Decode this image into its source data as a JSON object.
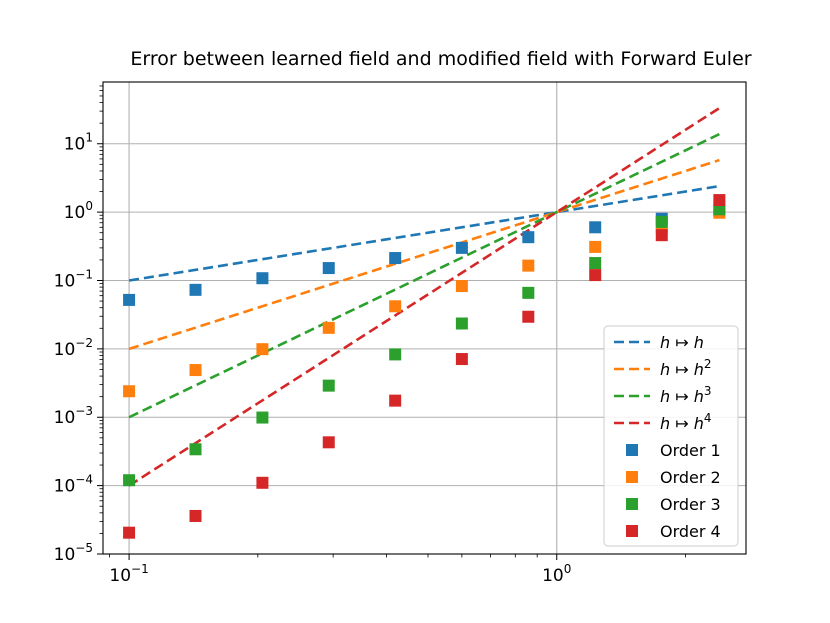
{
  "chart_data": {
    "type": "scatter",
    "title": "Error between learned field and modified field with Forward Euler",
    "xscale": "log",
    "yscale": "log",
    "xlim": [
      0.0869,
      2.77
    ],
    "ylim": [
      1e-05,
      80
    ],
    "grid": true,
    "legend_position": "lower-right",
    "x_ticks": [
      {
        "base": "10",
        "exp": "−1",
        "value": 0.1
      },
      {
        "base": "10",
        "exp": "0",
        "value": 1
      }
    ],
    "y_ticks": [
      {
        "base": "10",
        "exp": "−5",
        "value": 1e-05
      },
      {
        "base": "10",
        "exp": "−4",
        "value": 0.0001
      },
      {
        "base": "10",
        "exp": "−3",
        "value": 0.001
      },
      {
        "base": "10",
        "exp": "−2",
        "value": 0.01
      },
      {
        "base": "10",
        "exp": "−1",
        "value": 0.1
      },
      {
        "base": "10",
        "exp": "0",
        "value": 1
      },
      {
        "base": "10",
        "exp": "1",
        "value": 10
      }
    ],
    "reference_lines": [
      {
        "base": "h ↦ h",
        "power": "",
        "order": 1,
        "color": "#1f77b4",
        "x_range": [
          0.1,
          2.4
        ]
      },
      {
        "base": "h ↦ h",
        "power": "2",
        "order": 2,
        "color": "#ff7f0e",
        "x_range": [
          0.1,
          2.4
        ]
      },
      {
        "base": "h ↦ h",
        "power": "3",
        "order": 3,
        "color": "#2ca02c",
        "x_range": [
          0.1,
          2.4
        ]
      },
      {
        "base": "h ↦ h",
        "power": "4",
        "order": 4,
        "color": "#d62728",
        "x_range": [
          0.1,
          2.4
        ]
      }
    ],
    "x": [
      0.1,
      0.143,
      0.205,
      0.293,
      0.419,
      0.6,
      0.858,
      1.23,
      1.76,
      2.4
    ],
    "series": [
      {
        "name": "Order 1",
        "color": "#1f77b4",
        "values": [
          0.052,
          0.073,
          0.108,
          0.152,
          0.213,
          0.3,
          0.43,
          0.6,
          0.8,
          1.05
        ]
      },
      {
        "name": "Order 2",
        "color": "#ff7f0e",
        "values": [
          0.0024,
          0.0049,
          0.0099,
          0.0203,
          0.042,
          0.083,
          0.165,
          0.31,
          0.6,
          0.98
        ]
      },
      {
        "name": "Order 3",
        "color": "#2ca02c",
        "values": [
          0.00012,
          0.00034,
          0.00099,
          0.0029,
          0.0083,
          0.0235,
          0.066,
          0.18,
          0.72,
          1.1
        ]
      },
      {
        "name": "Order 4",
        "color": "#d62728",
        "values": [
          2.05e-05,
          3.6e-05,
          0.00011,
          0.00043,
          0.00175,
          0.0071,
          0.0295,
          0.12,
          0.46,
          1.5
        ]
      }
    ]
  }
}
